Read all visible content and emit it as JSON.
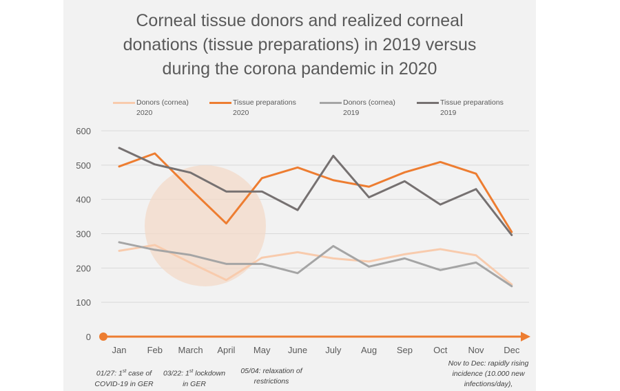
{
  "colors": {
    "panel_bg": "#f2f2f2",
    "donors_2020": "#f8cbad",
    "tissue_2020": "#ed7d31",
    "donors_2019": "#a5a5a5",
    "tissue_2019": "#767171",
    "timeline": "#ed7d31",
    "highlight_circle": "#f4d9c6",
    "grid": "#d9d9d9"
  },
  "title": {
    "line1": "Corneal tissue donors and realized corneal",
    "line2": "donations (tissue preparations) in 2019 versus",
    "line3": "during the corona pandemic in 2020"
  },
  "legend": [
    {
      "line1": "Donors (cornea)",
      "line2": "2020",
      "color": "#f8cbad"
    },
    {
      "line1": "Tissue preparations",
      "line2": "2020",
      "color": "#ed7d31"
    },
    {
      "line1": "Donors (cornea)",
      "line2": "2019",
      "color": "#a5a5a5"
    },
    {
      "line1": "Tissue preparations",
      "line2": "2019",
      "color": "#767171"
    }
  ],
  "annotations": {
    "a1": {
      "pre": "01/27: 1",
      "sup": "st",
      "post": " case of",
      "line2": "COVID-19 in GER"
    },
    "a2": {
      "pre": "03/22: 1",
      "sup": "st",
      "post": " lockdown",
      "line2": "in GER"
    },
    "a3": {
      "line1": "05/04: relaxation of",
      "line2": "restrictions"
    },
    "a4": {
      "line1": "Nov to Dec: rapidly rising",
      "line2": "incidence (10.000 new",
      "line3": "infections/day),"
    }
  },
  "chart_data": {
    "type": "line",
    "title": "Corneal tissue donors and realized corneal donations (tissue preparations) in 2019 versus during the corona pandemic in 2020",
    "categories": [
      "Jan",
      "Feb",
      "March",
      "April",
      "May",
      "June",
      "July",
      "Aug",
      "Sep",
      "Oct",
      "Nov",
      "Dec"
    ],
    "ylim": [
      0,
      600
    ],
    "yticks": [
      0,
      100,
      200,
      300,
      400,
      500,
      600
    ],
    "grid": true,
    "legend_position": "top",
    "series": [
      {
        "name": "Donors (cornea) 2020",
        "color": "#f8cbad",
        "values": [
          250,
          267,
          215,
          165,
          230,
          246,
          228,
          219,
          240,
          255,
          237,
          152
        ]
      },
      {
        "name": "Tissue preparations 2020",
        "color": "#ed7d31",
        "values": [
          496,
          534,
          430,
          330,
          462,
          493,
          456,
          437,
          479,
          509,
          475,
          305
        ]
      },
      {
        "name": "Donors (cornea) 2019",
        "color": "#a5a5a5",
        "values": [
          275,
          253,
          238,
          212,
          212,
          185,
          264,
          204,
          228,
          194,
          216,
          147
        ]
      },
      {
        "name": "Tissue preparations 2019",
        "color": "#767171",
        "values": [
          550,
          502,
          478,
          423,
          423,
          369,
          527,
          406,
          453,
          385,
          430,
          296
        ]
      }
    ]
  }
}
